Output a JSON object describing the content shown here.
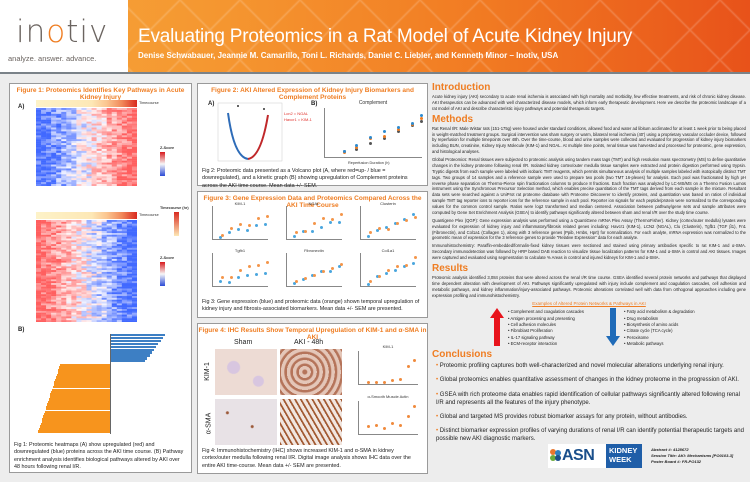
{
  "header": {
    "logo_text_pre": "in",
    "logo_text_o": "o",
    "logo_text_post": "tiv",
    "logo_tagline": "analyze. answer. advance.",
    "title": "Evaluating Proteomics in a Rat Model of Acute Kidney Injury",
    "authors": "Denise Schwabauer, Jeannie M. Camarillo, Toni L. Richards, Daniel C. Liebler, and Kenneth Minor – Inotiv, USA",
    "colors": {
      "gradient_start": "#f6a53a",
      "gradient_end": "#e8521a",
      "accent": "#ef7d22"
    }
  },
  "figure1": {
    "title": "Figure 1: Proteomics Identifies Key Pathways in Acute Kidney Injury",
    "panel_a_label": "A)",
    "panel_b_label": "B)",
    "timecourse_label": "Timecourse",
    "zscore_label": "Z-Score",
    "zscore_ticks": [
      ">= 3",
      "= 1",
      "= 0",
      "= -1",
      "<= -3"
    ],
    "timecourse_legend_title": "Timecourse (hr)",
    "timecourse_ticks": [
      "48",
      "36",
      "24",
      "12",
      "0"
    ],
    "caption": "Fig 1: Proteomic heatmaps (A) show upregulated (red) and downregulated (blue) proteins across the AKI time course. (B) Pathway enrichment analysis identifies biological pathways altered by AKI over 48 hours following renal I/R."
  },
  "figure2": {
    "title": "Figure 2: AKI Altered Expression of Kidney Injury Biomarkers and Complement Proteins",
    "panel_a_label": "A)",
    "panel_b_label": "B)",
    "volcano_annotation_1": "Lcn2 = NGAL",
    "volcano_annotation_2": "Havcr1 = KIM-1",
    "complement_title": "Complement",
    "complement_xlabel": "Reperfusion Duration (h)",
    "complement_legend": [
      "C3",
      "C4",
      "C5"
    ],
    "caption": "Fig 2: Proteomic data presented as a Volcano plot (A, where red=up- / blue = downregulated), and a kinetic graph (B) showing upregulation of Complement proteins across the AKI time course. Mean data +/- SEM."
  },
  "figure3": {
    "title": "Figure 3: Gene Expression Data and Proteomics Compared Across the AKI Time Course",
    "subplots": [
      "KIM-1",
      "NGAL",
      "Clusterin",
      "Tgfb1",
      "Fibronectin",
      "Col1a1"
    ],
    "legend": [
      "QGP",
      "Protein"
    ],
    "xlabel": "Reperfusion Duration (h)",
    "caption": "Fig 3: Gene expression (blue) and proteomic data (orange) shown temporal upregulation of kidney injury and fibrosis-associated biomarkers. Mean data +/- SEM are presented."
  },
  "figure4": {
    "title": "Figure 4: IHC Results Show Temporal Upregulation of KIM-1 and α-SMA in AKI",
    "col_sham": "Sham",
    "col_aki": "AKI - 48h",
    "row_kim1": "KIM-1",
    "row_asma": "α-SMA",
    "chart1_title": "KIM-1",
    "chart2_title": "α-Smooth Muscle Actin",
    "ylabel": "% Area",
    "xlabel": "Reperfusion Duration (h)",
    "caption": "Fig 4: Immunohistochemistry (IHC) shows increased KIM-1 and α-SMA in kidney cortex/outer medulla following renal I/R. Digital image analysis shows IHC data over the entire AKI time-course. Mean data +/- SEM are presented."
  },
  "introduction": {
    "heading": "Introduction",
    "text": "Acute kidney injury (AKI) secondary to acute renal ischemia is associated with high mortality and morbidity, few effective treatments, and risk of chronic kidney disease. AKI therapeutics can be advanced with well characterized disease models, which inform early therapeutic development. Here we describe the proteomic landscape of a rat model of AKI and describe characteristic injury pathways and potential therapeutic targets."
  },
  "methods": {
    "heading": "Methods",
    "paragraphs": [
      "Rat Renal I/R: Male Wistar rats (151-175g) were housed under standard conditions, allowed food and water ad libitum acclimated for at least 1 week prior to being placed in weight-matched treatment groups. Surgical intervention was sham surgery or warm, bilateral renal ischemia (40') using a proprietary vascular occluder device, followed by reperfusion for multiple timepoints over 48h. Over the time-course, blood and urine samples were collected and evaluated for progression of kidney injury biomarkers including BUN, creatinine, Kidney Injury Molecule (KIM-1) and NGAL. At multiple time points, renal tissue was harvested and processed for proteomic, gene expression, and histological analyses.",
      "Global Proteomics: Renal tissues were subjected to proteomic analysis using tandem mass tags (TMT) and high resolution mass spectrometry (MS) to define quantitative changes in the kidney proteome following renal I/R. Isolated kidney cortex/outer medulla tissue samples were extracted and protein digestion performed using trypsin. Tryptic digests from each sample were labeled with isobaric TMT reagents, which permits simultaneous analysis of multiple samples labeled with isotopically distinct TMT tags. Two groups of 14 samples and a reference sample were used to prepare two pools (two TMT 16-plexes) for analysis. Each pool was fractionated by high pH reverse phase separation on Thermo-Pierce spin fractionation columns to produce 8 fractions. Each fraction was analyzed by LC-MS/MS on a Thermo Fusion Lumos instrument using the Synchronous Precursor Selection method, which enables precise quantitation of the TMT tags derived from each sample in the mixture. Resultant data sets were searched against a UniProt rat proteome database with Proteome Discoverer to identify proteins, and quantitation was based on ratios of individual sample TMT tag reporter ions to reporter ions for the reference sample in each pool. Reporter ion signals for each peptide/protein were normalized to the corresponding values for the common control sample. Ratios were log2 transformed and median centered. Association between pathway/gene sets and sample attributes were computed by Gene Set Enrichment Analysis (GSEA) to identify pathways significantly altered between sham and renal I/R over the study time course.",
      "Quantigene Plex (QGP): Gene expression analysis was performed using a QuantiGene mRNA Plex Assay (ThermoFisher). Kidney (cortex/outer medulla) lysates were evaluated for expression of kidney injury and inflammatory/fibrosis related genes including: Havcr1 (KIM-1), LCN2 (NGAL), Clu (Clusterin), Tgfb1 (TGF β1), Fn1 (Fibronectin), and Col1a1 (Collagen 1), along with 3 reference genes (Ppib, Hmbs, Hprt) for normalization. For each analyte, mRNA expression was normalized to the geometric mean of expression for the 3 reference genes to provide \"Relative Expression\" data for each analyte.",
      "Immunohistochemistry: Paraffin-embedded/formalin-fixed kidney tissues were sectioned and stained using primary antibodies specific to rat KIM-1 and α-SMA. Secondary immunodetection was followed by HRP based DAB reaction to visualize tissue localization patterns for KIM-1 and α-SMA in control and AKI tissues. Images were captured and evaluated using segmentation to calculate % Areas in control and injured kidneys for KIM-1 and α-SMA."
    ]
  },
  "results": {
    "heading": "Results",
    "text": "Proteomic analysis identified 3,084 proteins that were altered across the renal I/R time course. GSEA identified several protein networks and pathways that displayed time dependent alteration with development of AKI. Pathways significantly upregulated with injury include complement and coagulation cascades, cell adhesion and metabolic pathways, and kidney inflammation/injury-associated pathways. Proteomic alterations correlated well with data from orthogonal approaches including gene expression profiling and immunohistochemistry.",
    "examples_title": "Examples of Altered Protein Networks & Pathways in AKI",
    "up_list": [
      "Complement and coagulation cascades",
      "Antigen processing and presenting",
      "Cell adhesion molecules",
      "Fibroblast Proliferation",
      "IL-17 signaling pathway",
      "ECM-receptor interaction"
    ],
    "down_list": [
      "Fatty acid metabolism & degradation",
      "Drug metabolism",
      "Biosynthesis of amino acids",
      "Citrate cycle (TCA cycle)",
      "Peroxisome",
      "Metabolic pathways"
    ],
    "up_color": "#e8131b",
    "down_color": "#1f6bb8"
  },
  "conclusions": {
    "heading": "Conclusions",
    "items": [
      "Proteomic profiling captures both well-characterized and novel molecular alterations underlying renal injury.",
      "Global proteomics enables quantitative assessment of changes in the kidney proteome in the progression of AKI.",
      "GSEA with rich proteome data enables rapid identification of cellular pathways significantly altered following renal I/R and represents all the features of the injury phenotype.",
      "Global and targeted MS provides robust biomarker assays for any protein, without antibodies.",
      "Distinct biomarker expression profiles of varying durations of renal I/R can identify potential therapeutic targets and possible new AKI diagnostic markers."
    ]
  },
  "footer": {
    "asn_text": "ASN",
    "kidney_week_line1": "KIDNEY",
    "kidney_week_line2": "WEEK",
    "abstract": "Abstract #: 4128672",
    "session": "Session Title: AKI: Mechanisms [PO0103-3]",
    "poster_board": "Poster Board #: FR-PO132"
  }
}
